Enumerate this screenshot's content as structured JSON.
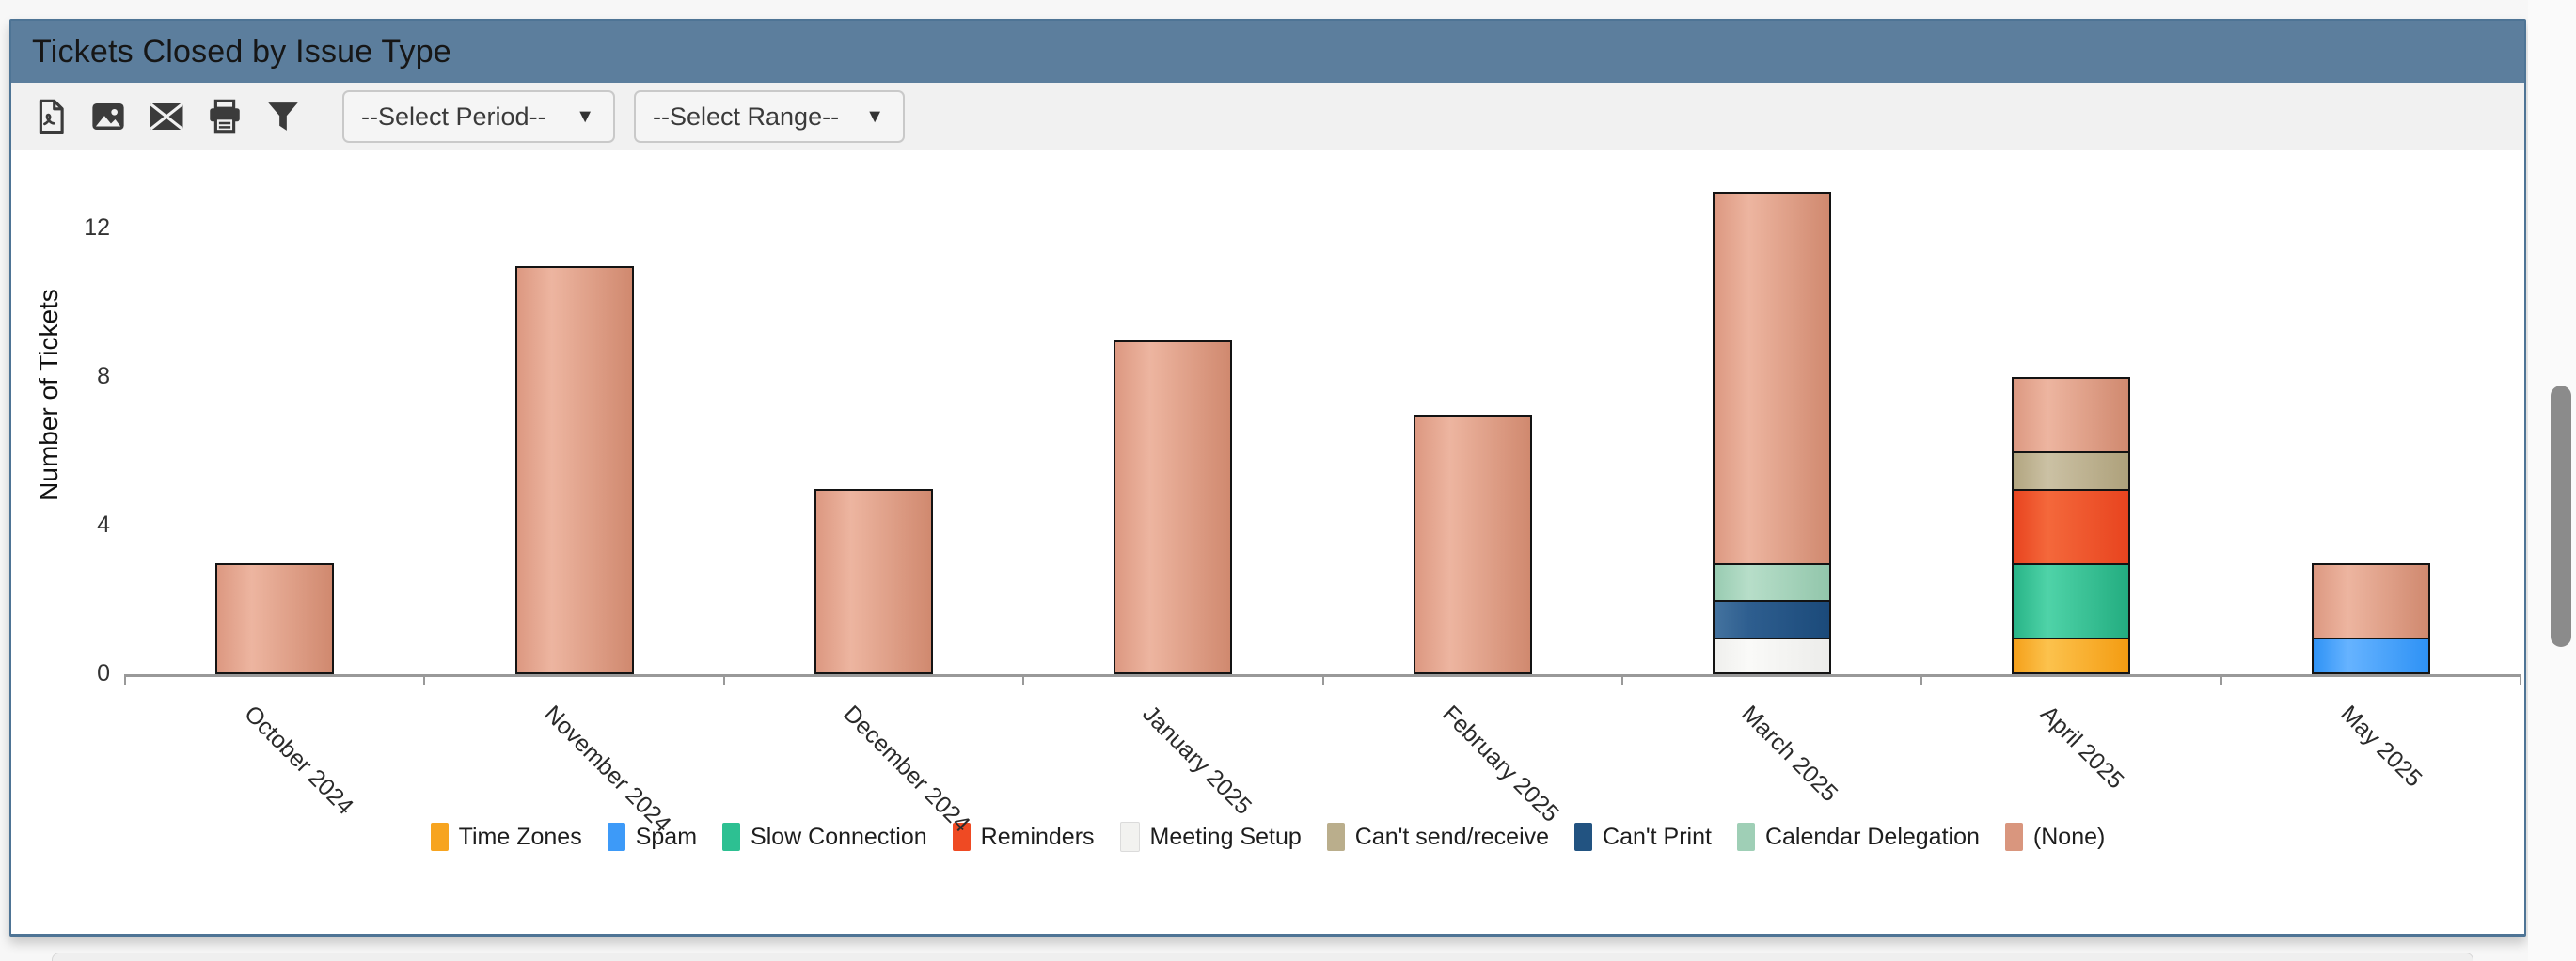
{
  "page": {
    "background": "#f7f7f7"
  },
  "panel": {
    "title": "Tickets Closed by Issue Type",
    "header_color": "#5C7E9D",
    "border_color": "#4E7495"
  },
  "toolbar": {
    "icons": [
      "export-pdf-icon",
      "export-image-icon",
      "email-icon",
      "print-icon",
      "filter-icon"
    ],
    "period_dropdown": {
      "value": "--Select Period--",
      "chevron": "▼"
    },
    "range_dropdown": {
      "value": "--Select Range--",
      "chevron": "▼"
    }
  },
  "scrollbar": {
    "thumb_color": "#8B8B8B"
  },
  "chart_data": {
    "type": "bar",
    "stacked": true,
    "title": "Tickets Closed by Issue Type",
    "xlabel": "",
    "ylabel": "Number of Tickets",
    "yticks": [
      0,
      4,
      8,
      12
    ],
    "ylim": [
      0,
      13.5
    ],
    "grid": false,
    "legend_position": "bottom",
    "categories": [
      "October 2024",
      "November 2024",
      "December 2024",
      "January 2025",
      "February 2025",
      "March 2025",
      "April 2025",
      "May 2025"
    ],
    "series": [
      {
        "name": "Time Zones",
        "color": "#F7A41F",
        "grad": [
          "#F5A01A",
          "#FCC24D",
          "#F49C12"
        ],
        "values": [
          0,
          0,
          0,
          0,
          0,
          0,
          1,
          0
        ]
      },
      {
        "name": "Spam",
        "color": "#3D9AF8",
        "grad": [
          "#2E92F5",
          "#66B3FF",
          "#2E92F5"
        ],
        "values": [
          0,
          0,
          0,
          0,
          0,
          0,
          0,
          1
        ]
      },
      {
        "name": "Slow Connection",
        "color": "#2DC092",
        "grad": [
          "#28B487",
          "#4FD3A8",
          "#23AD80"
        ],
        "values": [
          0,
          0,
          0,
          0,
          0,
          0,
          2,
          0
        ]
      },
      {
        "name": "Reminders",
        "color": "#EF4A23",
        "grad": [
          "#E8441F",
          "#F4683B",
          "#E8441F"
        ],
        "values": [
          0,
          0,
          0,
          0,
          0,
          0,
          2,
          0
        ]
      },
      {
        "name": "Meeting Setup",
        "color": "#F2F2F0",
        "grad": [
          "#EFEFED",
          "#FAFAF8",
          "#ECECEA"
        ],
        "swatch_border": "#DBDBDB",
        "values": [
          0,
          0,
          0,
          0,
          0,
          1,
          0,
          0
        ]
      },
      {
        "name": "Can't send/receive",
        "color": "#BAAE8C",
        "grad": [
          "#B2A580",
          "#CBC1A4",
          "#AEA17B"
        ],
        "values": [
          0,
          0,
          0,
          0,
          0,
          0,
          1,
          0
        ]
      },
      {
        "name": "Can't Print",
        "color": "#225381",
        "grad": [
          "#44739F",
          "#2E5E8F",
          "#1B4A7A"
        ],
        "values": [
          0,
          0,
          0,
          0,
          0,
          1,
          0,
          0
        ]
      },
      {
        "name": "Calendar Delegation",
        "color": "#9FCFB6",
        "grad": [
          "#98CBB1",
          "#B7DEC9",
          "#92C6AB"
        ],
        "values": [
          0,
          0,
          0,
          0,
          0,
          1,
          0,
          0
        ]
      },
      {
        "name": "(None)",
        "color": "#D9967E",
        "grad": [
          "#DC9881",
          "#EDB5A0",
          "#D0896F"
        ],
        "values": [
          3,
          11,
          5,
          9,
          7,
          10,
          2,
          2
        ]
      }
    ],
    "totals": [
      3,
      11,
      5,
      9,
      7,
      13,
      8,
      3
    ]
  }
}
